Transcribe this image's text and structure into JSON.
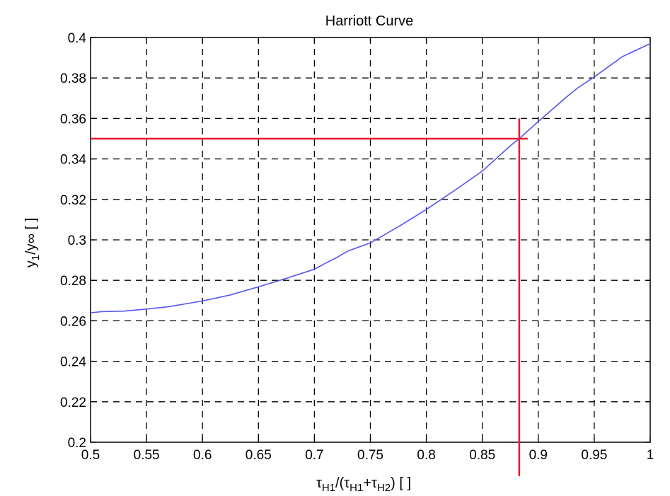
{
  "chart_data": {
    "type": "line",
    "title": "Harriott Curve",
    "xlabel": {
      "tau": "τ",
      "h1": "H1",
      "open": "/(",
      "plus": "+",
      "h2": "H2",
      "close": ") [ ]"
    },
    "ylabel": {
      "y": "y",
      "sub": "1",
      "rest": "/y∞ [ ]"
    },
    "xlim": [
      0.5,
      1.0
    ],
    "ylim": [
      0.2,
      0.4
    ],
    "x_ticks": [
      0.5,
      0.55,
      0.6,
      0.65,
      0.7,
      0.75,
      0.8,
      0.85,
      0.9,
      0.95,
      1.0
    ],
    "x_tick_labels": [
      "0.5",
      "0.55",
      "0.6",
      "0.65",
      "0.7",
      "0.75",
      "0.8",
      "0.85",
      "0.9",
      "0.95",
      "1"
    ],
    "y_ticks": [
      0.2,
      0.22,
      0.24,
      0.26,
      0.28,
      0.3,
      0.32,
      0.34,
      0.36,
      0.38,
      0.4
    ],
    "y_tick_labels": [
      "0.2",
      "0.22",
      "0.24",
      "0.26",
      "0.28",
      "0.3",
      "0.32",
      "0.34",
      "0.36",
      "0.38",
      "0.4"
    ],
    "grid": true,
    "grid_style": "dashed",
    "series": [
      {
        "color": "#5555ee",
        "x": [
          0.5,
          0.51,
          0.53,
          0.55,
          0.57,
          0.6,
          0.625,
          0.65,
          0.675,
          0.7,
          0.71,
          0.72,
          0.73,
          0.75,
          0.775,
          0.8,
          0.825,
          0.85,
          0.875,
          0.883,
          0.9,
          0.925,
          0.935,
          0.95,
          0.975,
          1.0
        ],
        "y": [
          0.264,
          0.2645,
          0.2648,
          0.2658,
          0.267,
          0.2698,
          0.2728,
          0.2768,
          0.281,
          0.2855,
          0.2885,
          0.2913,
          0.2945,
          0.2985,
          0.3065,
          0.315,
          0.3243,
          0.334,
          0.3465,
          0.35,
          0.3585,
          0.3705,
          0.375,
          0.3805,
          0.3905,
          0.397
        ]
      }
    ],
    "reference_lines": {
      "color": "#e8192c",
      "horizontal_y": 0.35,
      "vertical_x": 0.883
    }
  }
}
